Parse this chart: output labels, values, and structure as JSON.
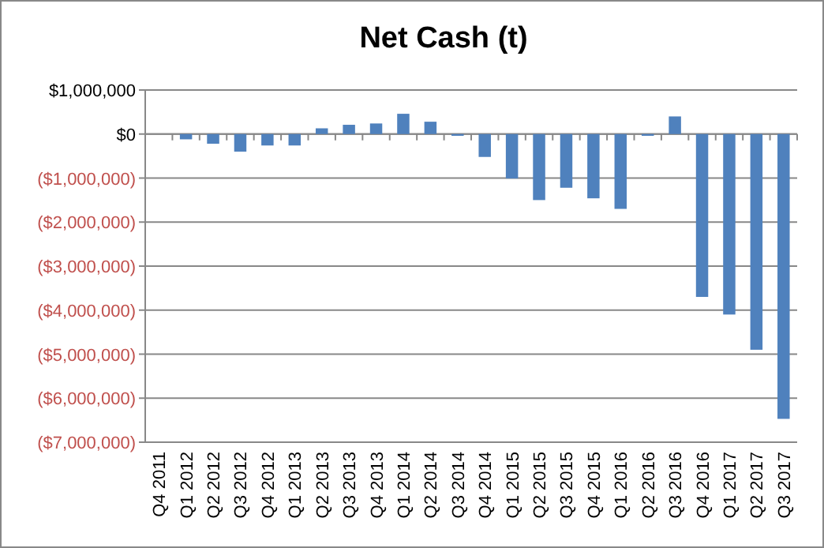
{
  "chart_data": {
    "type": "bar",
    "title": "Net Cash (t)",
    "categories": [
      "Q4 2011",
      "Q1 2012",
      "Q2 2012",
      "Q3 2012",
      "Q4 2012",
      "Q1 2013",
      "Q2 2013",
      "Q3 2013",
      "Q4 2013",
      "Q1 2014",
      "Q2 2014",
      "Q3 2014",
      "Q4 2014",
      "Q1 2015",
      "Q2 2015",
      "Q3 2015",
      "Q4 2015",
      "Q1 2016",
      "Q2 2016",
      "Q3 2016",
      "Q4 2016",
      "Q1 2017",
      "Q2 2017",
      "Q3 2017"
    ],
    "values": [
      0,
      -120000,
      -220000,
      -400000,
      -260000,
      -260000,
      130000,
      210000,
      240000,
      460000,
      280000,
      -40000,
      -520000,
      -1010000,
      -1500000,
      -1220000,
      -1460000,
      -1700000,
      -40000,
      400000,
      -3700000,
      -4100000,
      -4900000,
      -6470000
    ],
    "color": "#4f81bd",
    "ylim": [
      -7000000,
      1000000
    ],
    "yticks": [
      {
        "value": 1000000,
        "label": "$1,000,000"
      },
      {
        "value": 0,
        "label": "$0"
      },
      {
        "value": -1000000,
        "label": "($1,000,000)"
      },
      {
        "value": -2000000,
        "label": "($2,000,000)"
      },
      {
        "value": -3000000,
        "label": "($3,000,000)"
      },
      {
        "value": -4000000,
        "label": "($4,000,000)"
      },
      {
        "value": -5000000,
        "label": "($5,000,000)"
      },
      {
        "value": -6000000,
        "label": "($6,000,000)"
      },
      {
        "value": -7000000,
        "label": "($7,000,000)"
      }
    ],
    "grid": "y"
  }
}
